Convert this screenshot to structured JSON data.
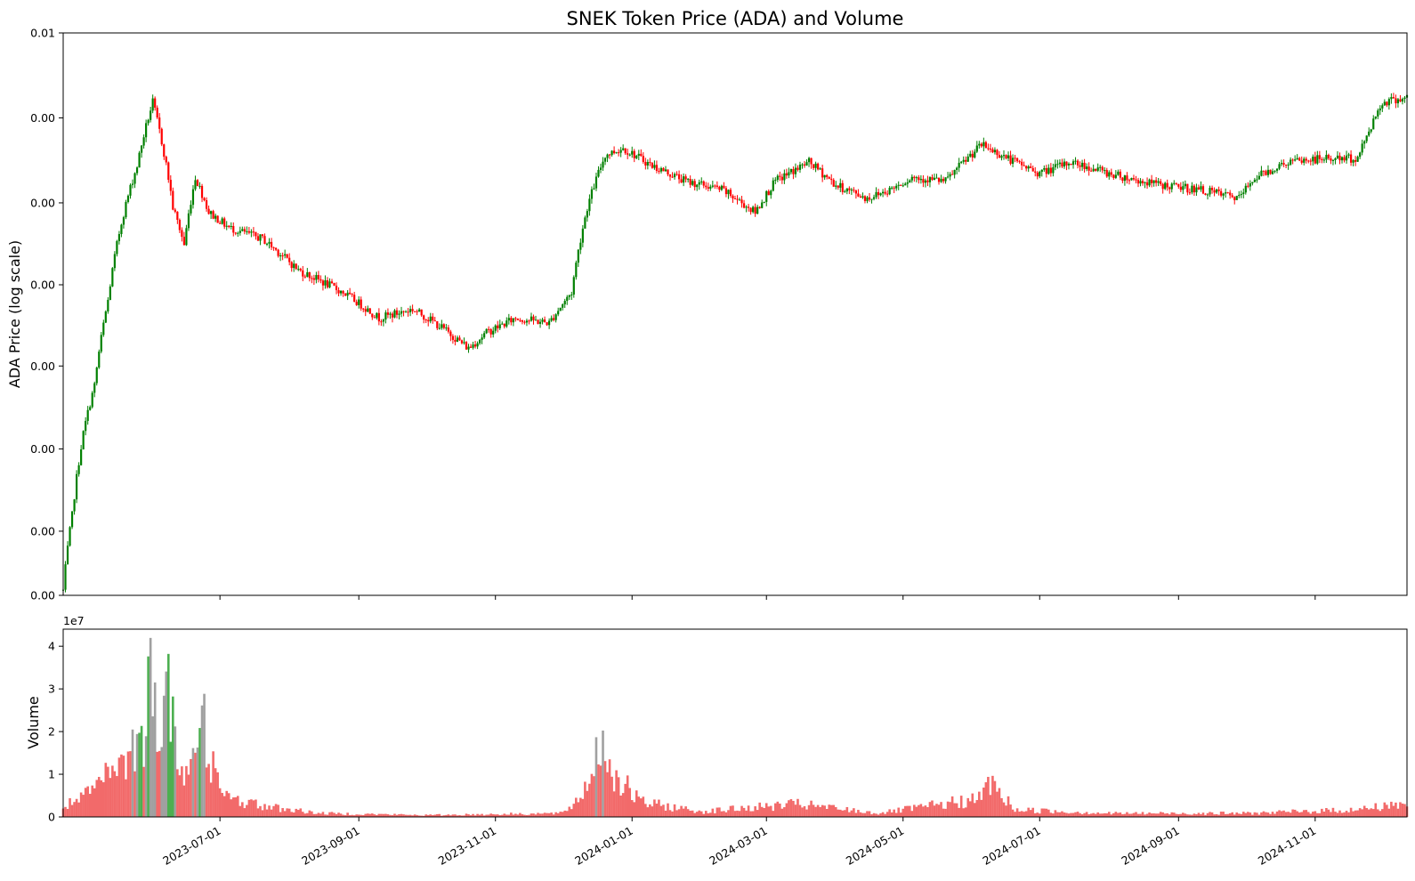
{
  "chart_data": [
    {
      "type": "candlestick",
      "title": "SNEK Token Price (ADA) and Volume",
      "ylabel": "ADA Price (log scale)",
      "yscale": "log",
      "ytick_labels": [
        "0.00",
        "0.00",
        "0.00",
        "0.00",
        "0.00",
        "0.00",
        "0.00",
        "0.00"
      ],
      "ytick_top_label": "0.01",
      "x_range": [
        "2023-04-22",
        "2024-12-12"
      ],
      "colors": {
        "up": "#008000",
        "down": "#ff0000"
      },
      "price_anchors": [
        [
          "2023-04-22",
          0.00035
        ],
        [
          "2023-04-26",
          0.00055
        ],
        [
          "2023-05-01",
          0.0009
        ],
        [
          "2023-05-06",
          0.0012
        ],
        [
          "2023-05-12",
          0.002
        ],
        [
          "2023-05-18",
          0.0032
        ],
        [
          "2023-05-25",
          0.0045
        ],
        [
          "2023-06-01",
          0.0066
        ],
        [
          "2023-06-05",
          0.0052
        ],
        [
          "2023-06-10",
          0.0035
        ],
        [
          "2023-06-15",
          0.0028
        ],
        [
          "2023-06-20",
          0.0042
        ],
        [
          "2023-06-26",
          0.0034
        ],
        [
          "2023-07-05",
          0.0031
        ],
        [
          "2023-07-20",
          0.0029
        ],
        [
          "2023-08-05",
          0.0024
        ],
        [
          "2023-08-25",
          0.0021
        ],
        [
          "2023-09-10",
          0.0018
        ],
        [
          "2023-09-25",
          0.0019
        ],
        [
          "2023-10-05",
          0.00175
        ],
        [
          "2023-10-20",
          0.0015
        ],
        [
          "2023-10-28",
          0.00165
        ],
        [
          "2023-11-10",
          0.0018
        ],
        [
          "2023-11-25",
          0.00175
        ],
        [
          "2023-12-05",
          0.0021
        ],
        [
          "2023-12-12",
          0.0035
        ],
        [
          "2023-12-20",
          0.0048
        ],
        [
          "2023-12-28",
          0.005
        ],
        [
          "2024-01-10",
          0.0045
        ],
        [
          "2024-01-25",
          0.0041
        ],
        [
          "2024-02-10",
          0.0039
        ],
        [
          "2024-02-25",
          0.0034
        ],
        [
          "2024-03-05",
          0.0041
        ],
        [
          "2024-03-20",
          0.0046
        ],
        [
          "2024-04-01",
          0.004
        ],
        [
          "2024-04-15",
          0.0037
        ],
        [
          "2024-04-25",
          0.0039
        ],
        [
          "2024-05-05",
          0.0042
        ],
        [
          "2024-05-20",
          0.0041
        ],
        [
          "2024-06-05",
          0.0051
        ],
        [
          "2024-06-20",
          0.0046
        ],
        [
          "2024-07-01",
          0.0043
        ],
        [
          "2024-07-15",
          0.0046
        ],
        [
          "2024-08-01",
          0.0043
        ],
        [
          "2024-08-15",
          0.0041
        ],
        [
          "2024-08-25",
          0.004
        ],
        [
          "2024-09-10",
          0.0039
        ],
        [
          "2024-09-28",
          0.0037
        ],
        [
          "2024-10-05",
          0.0042
        ],
        [
          "2024-10-20",
          0.0046
        ],
        [
          "2024-11-05",
          0.0047
        ],
        [
          "2024-11-20",
          0.0047
        ],
        [
          "2024-12-01",
          0.0066
        ],
        [
          "2024-12-12",
          0.0068
        ]
      ]
    },
    {
      "type": "bar",
      "ylabel": "Volume",
      "offset_label": "1e7",
      "ytick_labels": [
        "0",
        "1",
        "2",
        "3",
        "4"
      ],
      "ylim": [
        0,
        4.4
      ],
      "xtick_labels": [
        "2023-07-01",
        "2023-09-01",
        "2023-11-01",
        "2024-01-01",
        "2024-03-01",
        "2024-05-01",
        "2024-07-01",
        "2024-09-01",
        "2024-11-01"
      ],
      "colors": {
        "up": "#4caf50",
        "down": "#f26a6a",
        "mixed": "#a0a0a0"
      },
      "volume_anchors_1e7": [
        [
          "2023-04-22",
          0.3
        ],
        [
          "2023-05-01",
          0.5
        ],
        [
          "2023-05-10",
          1.0
        ],
        [
          "2023-05-20",
          1.5
        ],
        [
          "2023-05-28",
          2.6
        ],
        [
          "2023-06-01",
          4.1
        ],
        [
          "2023-06-05",
          2.0
        ],
        [
          "2023-06-08",
          4.1
        ],
        [
          "2023-06-12",
          1.2
        ],
        [
          "2023-06-20",
          1.4
        ],
        [
          "2023-06-24",
          2.6
        ],
        [
          "2023-07-01",
          0.6
        ],
        [
          "2023-07-20",
          0.3
        ],
        [
          "2023-08-15",
          0.1
        ],
        [
          "2023-10-01",
          0.05
        ],
        [
          "2023-12-01",
          0.1
        ],
        [
          "2023-12-10",
          0.6
        ],
        [
          "2023-12-18",
          2.1
        ],
        [
          "2023-12-25",
          1.1
        ],
        [
          "2024-01-05",
          0.4
        ],
        [
          "2024-02-01",
          0.15
        ],
        [
          "2024-03-15",
          0.35
        ],
        [
          "2024-04-20",
          0.1
        ],
        [
          "2024-06-05",
          0.5
        ],
        [
          "2024-06-08",
          1.0
        ],
        [
          "2024-06-20",
          0.2
        ],
        [
          "2024-08-01",
          0.1
        ],
        [
          "2024-10-01",
          0.1
        ],
        [
          "2024-11-20",
          0.2
        ],
        [
          "2024-12-12",
          0.4
        ]
      ]
    }
  ]
}
